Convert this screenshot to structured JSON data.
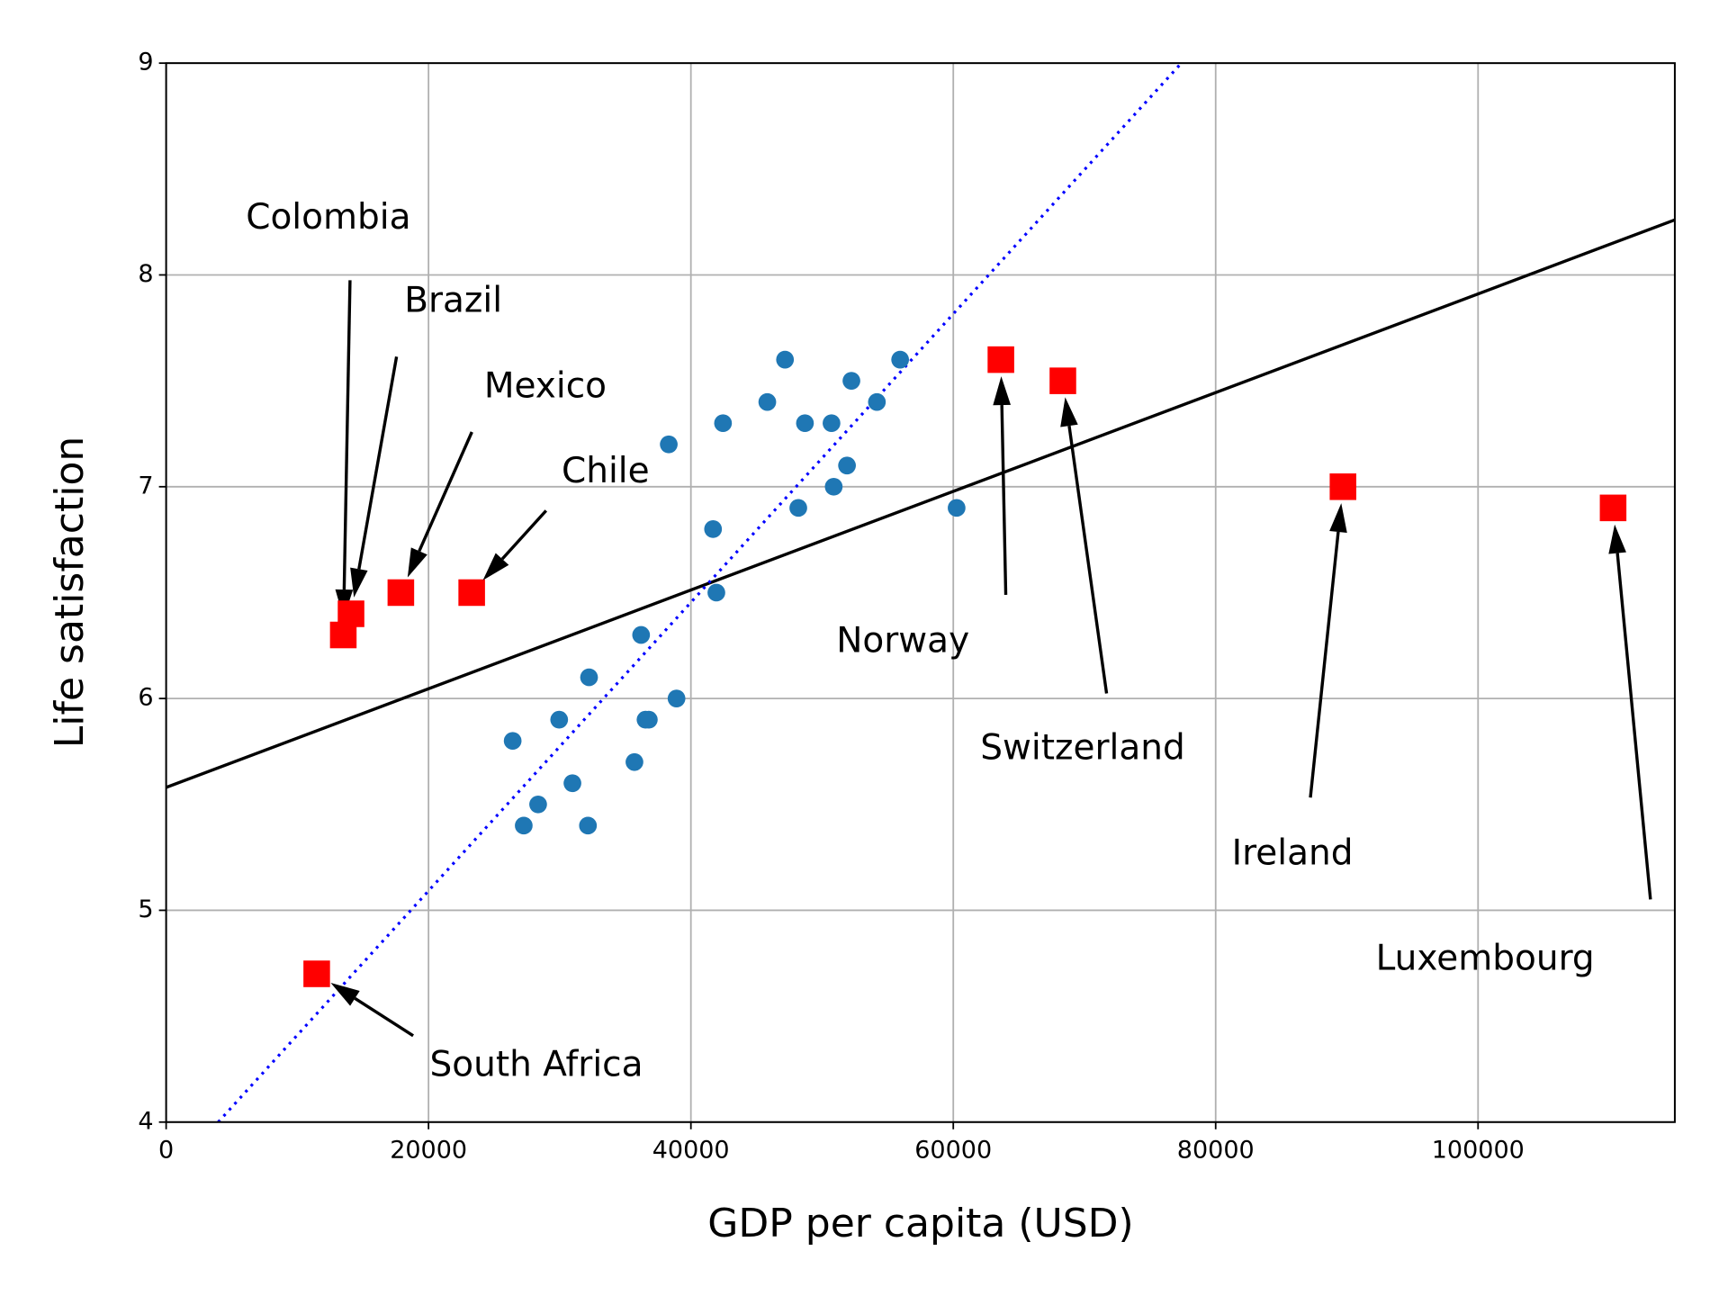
{
  "chart_data": {
    "type": "scatter",
    "xlabel": "GDP per capita (USD)",
    "ylabel": "Life satisfaction",
    "xlim": [
      0,
      115000
    ],
    "ylim": [
      4,
      9
    ],
    "xticks": [
      0,
      20000,
      40000,
      60000,
      80000,
      100000
    ],
    "yticks": [
      4,
      5,
      6,
      7,
      8,
      9
    ],
    "grid": true,
    "series": [
      {
        "color": "#1f77b4",
        "marker": "circle",
        "x": [
          26414,
          27257,
          28354,
          29958,
          30970,
          32236,
          32152,
          35696,
          36203,
          36540,
          36793,
          38903,
          38312,
          41688,
          41941,
          42447,
          45823,
          47173,
          48186,
          48692,
          50717,
          50886,
          51899,
          52236,
          54177,
          55949,
          60253
        ],
        "y": [
          5.8,
          5.4,
          5.5,
          5.9,
          5.6,
          6.1,
          5.4,
          5.7,
          6.3,
          5.9,
          5.9,
          6.0,
          7.2,
          6.8,
          6.5,
          7.3,
          7.4,
          7.6,
          6.9,
          7.3,
          7.3,
          7.0,
          7.1,
          7.5,
          7.4,
          7.6,
          6.9
        ]
      },
      {
        "color": "#ff0000",
        "marker": "square",
        "labels": [
          "South Africa",
          "Colombia",
          "Brazil",
          "Mexico",
          "Chile",
          "Norway",
          "Switzerland",
          "Ireland",
          "Luxembourg"
        ],
        "x": [
          11477,
          13502,
          14093,
          17890,
          23291,
          63629,
          68354,
          89705,
          110295
        ],
        "y": [
          4.7,
          6.3,
          6.4,
          6.5,
          6.5,
          7.6,
          7.5,
          7.0,
          6.9
        ]
      }
    ],
    "lines": [
      {
        "color": "#000000",
        "style": "solid",
        "x": [
          0,
          115000
        ],
        "y": [
          5.58,
          8.26
        ]
      },
      {
        "color": "#0000ff",
        "style": "dotted",
        "x": [
          3966,
          77384
        ],
        "y": [
          4,
          9
        ]
      }
    ]
  }
}
